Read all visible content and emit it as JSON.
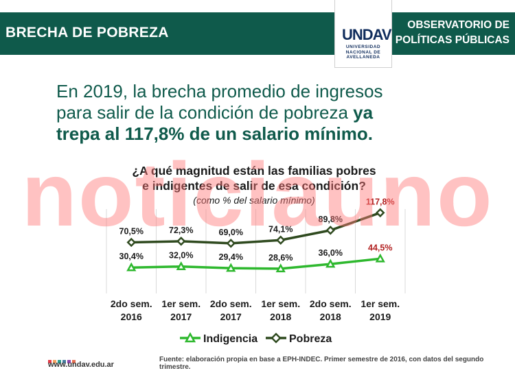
{
  "header": {
    "title": "BRECHA DE POBREZA",
    "right_line1": "OBSERVATORIO DE",
    "right_line2": "POLÍTICAS PÚBLICAS"
  },
  "logo": {
    "mark": "UNDAV",
    "line1": "UNIVERSIDAD",
    "line2": "NACIONAL DE",
    "line3": "AVELLANEDA"
  },
  "headline": {
    "part1": "En 2019, la brecha promedio de ingresos",
    "part2": "para salir de la condición de pobreza",
    "part3": "ya",
    "part4": "trepa al 117,8% de un salario mínimo."
  },
  "watermark": "noticiauno",
  "chart_data": {
    "type": "line",
    "title_line1": "¿A qué magnitud están las familias pobres",
    "title_line2": "e indigentes de salir de esa condición?",
    "subtitle": "(como % del salario mínimo)",
    "categories": [
      [
        "2do sem.",
        "2016"
      ],
      [
        "1er sem.",
        "2017"
      ],
      [
        "2do sem.",
        "2017"
      ],
      [
        "1er sem.",
        "2018"
      ],
      [
        "2do sem.",
        "2018"
      ],
      [
        "1er sem.",
        "2019"
      ]
    ],
    "ylim": [
      0,
      140
    ],
    "grid": false,
    "legend_position": "bottom-center",
    "series": [
      {
        "name": "Indigencia",
        "values": [
          30.4,
          32.0,
          29.4,
          28.6,
          36.0,
          44.5
        ],
        "labels": [
          "30,4%",
          "32,0%",
          "29,4%",
          "28,6%",
          "36,0%",
          "44,5%"
        ],
        "color": "#2eb82e",
        "marker": "triangle"
      },
      {
        "name": "Pobreza",
        "values": [
          70.5,
          72.3,
          69.0,
          74.1,
          89.8,
          117.8
        ],
        "labels": [
          "70,5%",
          "72,3%",
          "69,0%",
          "74,1%",
          "89,8%",
          "117,8%"
        ],
        "color": "#2f4a1f",
        "marker": "diamond"
      }
    ],
    "highlight_color": "#b22222"
  },
  "footer": {
    "url": "www.undav.edu.ar",
    "source": "Fuente: elaboración propia en base a EPH-INDEC. Primer semestre de 2016, con datos del segundo trimestre.",
    "dot_colors": [
      "#e63946",
      "#f4a261",
      "#2a9d8f",
      "#457b9d",
      "#8e44ad",
      "#e76f51"
    ]
  }
}
